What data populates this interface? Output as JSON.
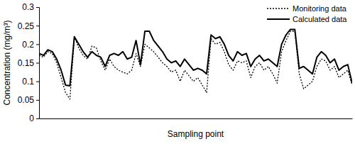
{
  "chart_data": {
    "type": "line",
    "x_label": "Sampling point",
    "y_label": "Concentration (mg/m³)",
    "categories": [
      null,
      null,
      null,
      null,
      null,
      null,
      null,
      null,
      null,
      null,
      null,
      null,
      null,
      null,
      null,
      null,
      null,
      null,
      null,
      null,
      null,
      null,
      null,
      null,
      null,
      null,
      null,
      null,
      null,
      null,
      null,
      null,
      null,
      null,
      null,
      null,
      null,
      null,
      null,
      null,
      null,
      null,
      null,
      null,
      null,
      null,
      null,
      null,
      null,
      null,
      null,
      null,
      null,
      null,
      null,
      null,
      null,
      null,
      null,
      null,
      null,
      null,
      null,
      null,
      null,
      null,
      null,
      null,
      null,
      null,
      null,
      null
    ],
    "series": [
      {
        "name": "Monitoring data",
        "color": "#000000",
        "line_style": "dotted",
        "values": [
          0.17,
          0.165,
          0.18,
          0.175,
          0.15,
          0.11,
          0.07,
          0.052,
          0.22,
          0.19,
          0.17,
          0.16,
          0.195,
          0.19,
          0.155,
          0.13,
          0.16,
          0.14,
          0.13,
          0.125,
          0.12,
          0.13,
          0.175,
          0.14,
          0.2,
          0.19,
          0.18,
          0.165,
          0.15,
          0.14,
          0.125,
          0.13,
          0.1,
          0.13,
          0.115,
          0.1,
          0.11,
          0.09,
          0.07,
          0.215,
          0.2,
          0.205,
          0.18,
          0.145,
          0.13,
          0.155,
          0.15,
          0.155,
          0.11,
          0.14,
          0.15,
          0.13,
          0.14,
          0.12,
          0.095,
          0.18,
          0.21,
          0.235,
          0.235,
          0.12,
          0.08,
          0.09,
          0.1,
          0.14,
          0.16,
          0.155,
          0.13,
          0.14,
          0.11,
          0.12,
          0.13,
          0.09
        ]
      },
      {
        "name": "Calculated data",
        "color": "#000000",
        "line_style": "solid",
        "values": [
          0.175,
          0.17,
          0.185,
          0.18,
          0.16,
          0.13,
          0.09,
          0.088,
          0.22,
          0.2,
          0.18,
          0.165,
          0.18,
          0.17,
          0.165,
          0.14,
          0.17,
          0.175,
          0.17,
          0.18,
          0.16,
          0.165,
          0.21,
          0.145,
          0.235,
          0.235,
          0.21,
          0.195,
          0.18,
          0.16,
          0.15,
          0.155,
          0.14,
          0.16,
          0.145,
          0.13,
          0.135,
          0.13,
          0.12,
          0.225,
          0.215,
          0.22,
          0.2,
          0.17,
          0.155,
          0.18,
          0.17,
          0.175,
          0.14,
          0.16,
          0.17,
          0.155,
          0.16,
          0.15,
          0.14,
          0.2,
          0.225,
          0.24,
          0.24,
          0.135,
          0.14,
          0.13,
          0.12,
          0.165,
          0.18,
          0.17,
          0.15,
          0.16,
          0.13,
          0.14,
          0.145,
          0.095
        ]
      }
    ],
    "ylim": [
      0,
      0.3
    ],
    "yticks": [
      0,
      0.05,
      0.1,
      0.15,
      0.2,
      0.25,
      0.3
    ],
    "tick_labels": "y",
    "legend": "upper right",
    "grid": false
  }
}
